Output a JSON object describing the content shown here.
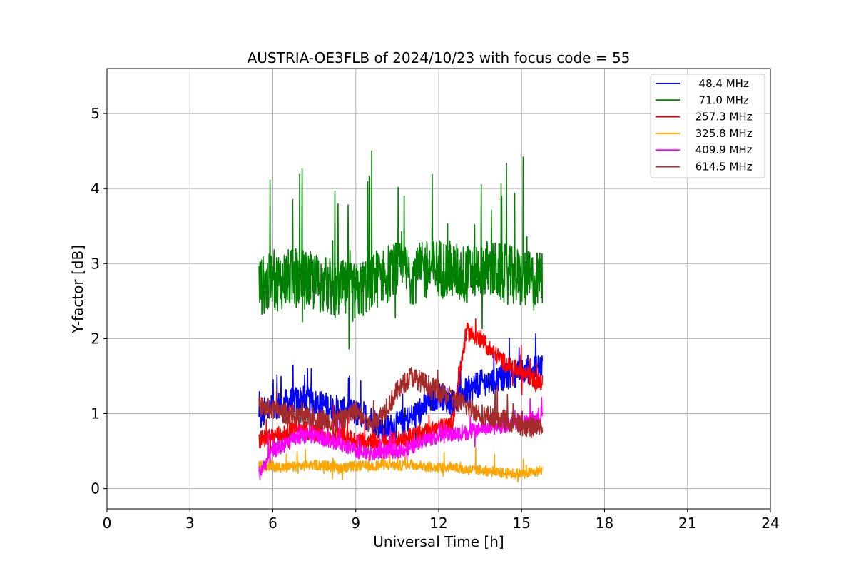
{
  "chart_data": {
    "type": "line",
    "title": "AUSTRIA-OE3FLB of 2024/10/23 with focus code = 55",
    "xlabel": "Universal Time [h]",
    "ylabel": "Y-factor [dB]",
    "xlim": [
      0,
      24
    ],
    "ylim": [
      -0.27,
      5.6
    ],
    "xticks": [
      0,
      3,
      6,
      9,
      12,
      15,
      18,
      21,
      24
    ],
    "xtick_labels": [
      "0",
      "3",
      "6",
      "9",
      "12",
      "15",
      "18",
      "21",
      "24"
    ],
    "yticks": [
      0,
      1,
      2,
      3,
      4,
      5
    ],
    "ytick_labels": [
      "0",
      "1",
      "2",
      "3",
      "4",
      "5"
    ],
    "grid": true,
    "legend_position": "top-right",
    "x": [
      5.5,
      6.0,
      6.5,
      7.0,
      7.5,
      8.0,
      8.5,
      9.0,
      9.5,
      10.0,
      10.5,
      11.0,
      11.5,
      12.0,
      12.5,
      13.0,
      13.5,
      14.0,
      14.5,
      15.0,
      15.5,
      15.75
    ],
    "series": [
      {
        "name": "  48.4 MHz",
        "color": "#0000ff",
        "values": [
          0.9,
          1.1,
          1.15,
          1.2,
          1.15,
          1.1,
          1.05,
          1.0,
          0.95,
          0.8,
          0.85,
          0.95,
          1.1,
          1.25,
          1.15,
          1.3,
          1.4,
          1.45,
          1.5,
          1.55,
          1.6,
          1.65
        ]
      },
      {
        "name": "  71.0 MHz",
        "color": "#008000",
        "values": [
          2.7,
          2.75,
          2.8,
          2.8,
          2.75,
          2.7,
          2.65,
          2.6,
          2.75,
          2.85,
          2.9,
          2.85,
          2.9,
          2.95,
          2.9,
          2.85,
          2.95,
          2.9,
          2.85,
          2.8,
          2.75,
          2.8
        ]
      },
      {
        "name": " 257.3 MHz",
        "color": "#ff0000",
        "values": [
          0.65,
          0.7,
          0.75,
          0.8,
          0.75,
          0.7,
          0.7,
          0.65,
          0.65,
          0.6,
          0.65,
          0.7,
          0.75,
          0.8,
          0.9,
          2.1,
          2.0,
          1.8,
          1.65,
          1.55,
          1.45,
          1.4
        ]
      },
      {
        "name": " 325.8 MHz",
        "color": "#ffa500",
        "values": [
          0.3,
          0.3,
          0.28,
          0.3,
          0.32,
          0.3,
          0.28,
          0.3,
          0.3,
          0.32,
          0.3,
          0.33,
          0.3,
          0.28,
          0.3,
          0.25,
          0.25,
          0.22,
          0.2,
          0.2,
          0.22,
          0.25
        ]
      },
      {
        "name": " 409.9 MHz",
        "color": "#ff00ff",
        "values": [
          0.2,
          0.5,
          0.6,
          0.7,
          0.7,
          0.65,
          0.6,
          0.5,
          0.45,
          0.5,
          0.5,
          0.55,
          0.65,
          0.7,
          0.72,
          0.75,
          0.8,
          0.82,
          0.85,
          0.9,
          0.95,
          1.0
        ]
      },
      {
        "name": " 614.5 MHz",
        "color": "#a52a2a",
        "values": [
          1.1,
          1.05,
          1.0,
          0.95,
          0.95,
          0.9,
          0.9,
          1.05,
          0.85,
          1.0,
          1.3,
          1.5,
          1.4,
          1.3,
          1.2,
          1.1,
          1.0,
          0.95,
          0.9,
          0.85,
          0.8,
          0.85
        ]
      }
    ]
  }
}
